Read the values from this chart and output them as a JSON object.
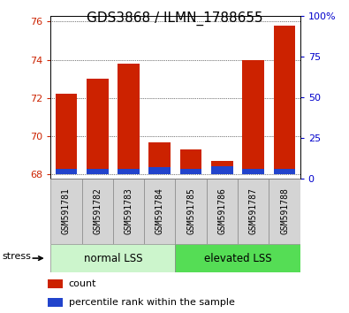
{
  "title": "GDS3868 / ILMN_1788655",
  "samples": [
    "GSM591781",
    "GSM591782",
    "GSM591783",
    "GSM591784",
    "GSM591785",
    "GSM591786",
    "GSM591787",
    "GSM591788"
  ],
  "red_values": [
    72.2,
    73.0,
    73.8,
    69.7,
    69.3,
    68.7,
    74.0,
    75.8
  ],
  "blue_values": [
    0.3,
    0.32,
    0.3,
    0.38,
    0.32,
    0.45,
    0.3,
    0.28
  ],
  "baseline": 68.0,
  "ylim_left": [
    67.8,
    76.3
  ],
  "ylim_right": [
    0,
    100
  ],
  "yticks_left": [
    68,
    70,
    72,
    74,
    76
  ],
  "yticks_right": [
    0,
    25,
    50,
    75,
    100
  ],
  "yticklabels_right": [
    "0",
    "25",
    "50",
    "75",
    "100%"
  ],
  "group1_label": "normal LSS",
  "group2_label": "elevated LSS",
  "stress_label": "stress",
  "legend_red": "count",
  "legend_blue": "percentile rank within the sample",
  "group1_indices": [
    0,
    1,
    2,
    3
  ],
  "group2_indices": [
    4,
    5,
    6,
    7
  ],
  "group1_color": "#ccf5cc",
  "group2_color": "#55dd55",
  "bar_color_red": "#cc2200",
  "bar_color_blue": "#2244cc",
  "bar_width": 0.7,
  "tick_label_color_left": "#cc2200",
  "tick_label_color_right": "#0000cc",
  "background_xtick": "#d4d4d4",
  "grid_linestyle": "dotted",
  "title_fontsize": 11,
  "axis_fontsize": 8,
  "tick_fontsize": 7,
  "legend_fontsize": 8
}
